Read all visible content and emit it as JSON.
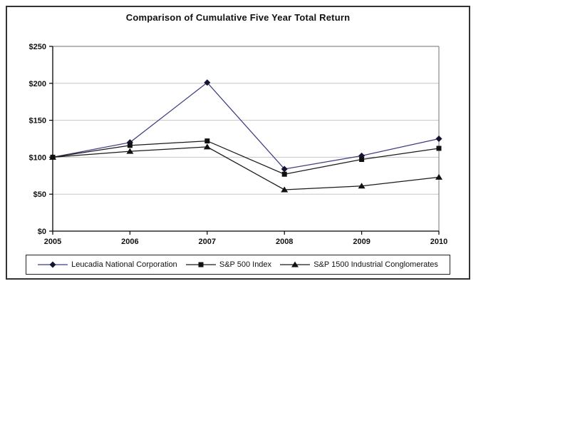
{
  "figure": {
    "title": "Comparison of Cumulative Five Year Total Return"
  },
  "chart_data": {
    "type": "line",
    "title": "Comparison of Cumulative Five Year Total Return",
    "categories": [
      "2005",
      "2006",
      "2007",
      "2008",
      "2009",
      "2010"
    ],
    "series": [
      {
        "name": "Leucadia National Corporation",
        "marker": "diamond",
        "line_color": "#3c3c82",
        "marker_color": "#141432",
        "values": [
          100,
          120,
          201,
          84,
          102,
          125
        ]
      },
      {
        "name": "S&P 500 Index",
        "marker": "square",
        "line_color": "#1a1a1a",
        "marker_color": "#111111",
        "values": [
          100,
          116,
          122,
          77,
          97,
          112
        ]
      },
      {
        "name": "S&P 1500 Industrial Conglomerates",
        "marker": "triangle",
        "line_color": "#1a1a1a",
        "marker_color": "#111111",
        "values": [
          100,
          108,
          114,
          56,
          61,
          73
        ]
      }
    ],
    "xlabel": "",
    "ylabel": "",
    "ylim": [
      0,
      250
    ],
    "ytick_step": 50,
    "ytick_labels": [
      "$0",
      "$50",
      "$100",
      "$150",
      "$200",
      "$250"
    ],
    "grid": true,
    "legend_position": "bottom"
  },
  "style_colors": {
    "gridline": "#c6c6c6",
    "plot_border": "#8a8a8a",
    "axis": "#000000",
    "text": "#111111",
    "background": "#ffffff",
    "figure_border": "#333333"
  }
}
